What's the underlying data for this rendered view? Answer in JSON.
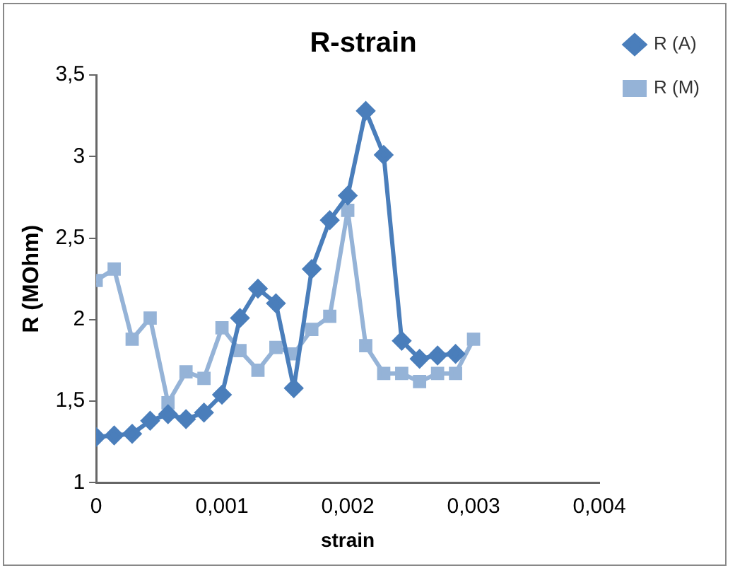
{
  "chart_data": {
    "type": "line",
    "title": "R-strain",
    "xlabel": "strain",
    "ylabel": "R (MOhm)",
    "xlim": [
      0,
      0.004
    ],
    "xticks": [
      {
        "value": 0,
        "label": "0"
      },
      {
        "value": 0.001,
        "label": "0,001"
      },
      {
        "value": 0.002,
        "label": "0,002"
      },
      {
        "value": 0.003,
        "label": "0,003"
      },
      {
        "value": 0.004,
        "label": "0,004"
      }
    ],
    "ylim": [
      1,
      3.5
    ],
    "yticks": [
      {
        "value": 1,
        "label": "1"
      },
      {
        "value": 1.5,
        "label": "1,5"
      },
      {
        "value": 2,
        "label": "2"
      },
      {
        "value": 2.5,
        "label": "2,5"
      },
      {
        "value": 3,
        "label": "3"
      },
      {
        "value": 3.5,
        "label": "3,5"
      }
    ],
    "grid": false,
    "legend": "right",
    "line_style": "solid",
    "series": [
      {
        "name": "R (A)",
        "color": "#4a7ebb",
        "marker": "diamond",
        "x": [
          0,
          0.000143,
          0.000286,
          0.000429,
          0.000571,
          0.000714,
          0.000857,
          0.001,
          0.001143,
          0.001286,
          0.001429,
          0.001571,
          0.001714,
          0.001857,
          0.002,
          0.002143,
          0.002286,
          0.002429,
          0.002571,
          0.002714,
          0.002857
        ],
        "values": [
          1.28,
          1.29,
          1.3,
          1.38,
          1.42,
          1.39,
          1.43,
          1.54,
          2.01,
          2.19,
          2.1,
          1.58,
          2.31,
          2.61,
          2.76,
          3.28,
          3.01,
          1.87,
          1.76,
          1.78,
          1.79
        ]
      },
      {
        "name": "R (M)",
        "color": "#95b3d7",
        "marker": "square",
        "x": [
          0,
          0.000143,
          0.000286,
          0.000429,
          0.000571,
          0.000714,
          0.000857,
          0.001,
          0.001143,
          0.001286,
          0.001429,
          0.001571,
          0.001714,
          0.001857,
          0.002,
          0.002143,
          0.002286,
          0.002429,
          0.002571,
          0.002714,
          0.002857,
          0.003
        ],
        "values": [
          2.24,
          2.31,
          1.88,
          2.01,
          1.49,
          1.68,
          1.64,
          1.95,
          1.81,
          1.69,
          1.83,
          1.79,
          1.94,
          2.02,
          2.67,
          1.84,
          1.67,
          1.67,
          1.62,
          1.67,
          1.67,
          1.88
        ]
      }
    ]
  }
}
